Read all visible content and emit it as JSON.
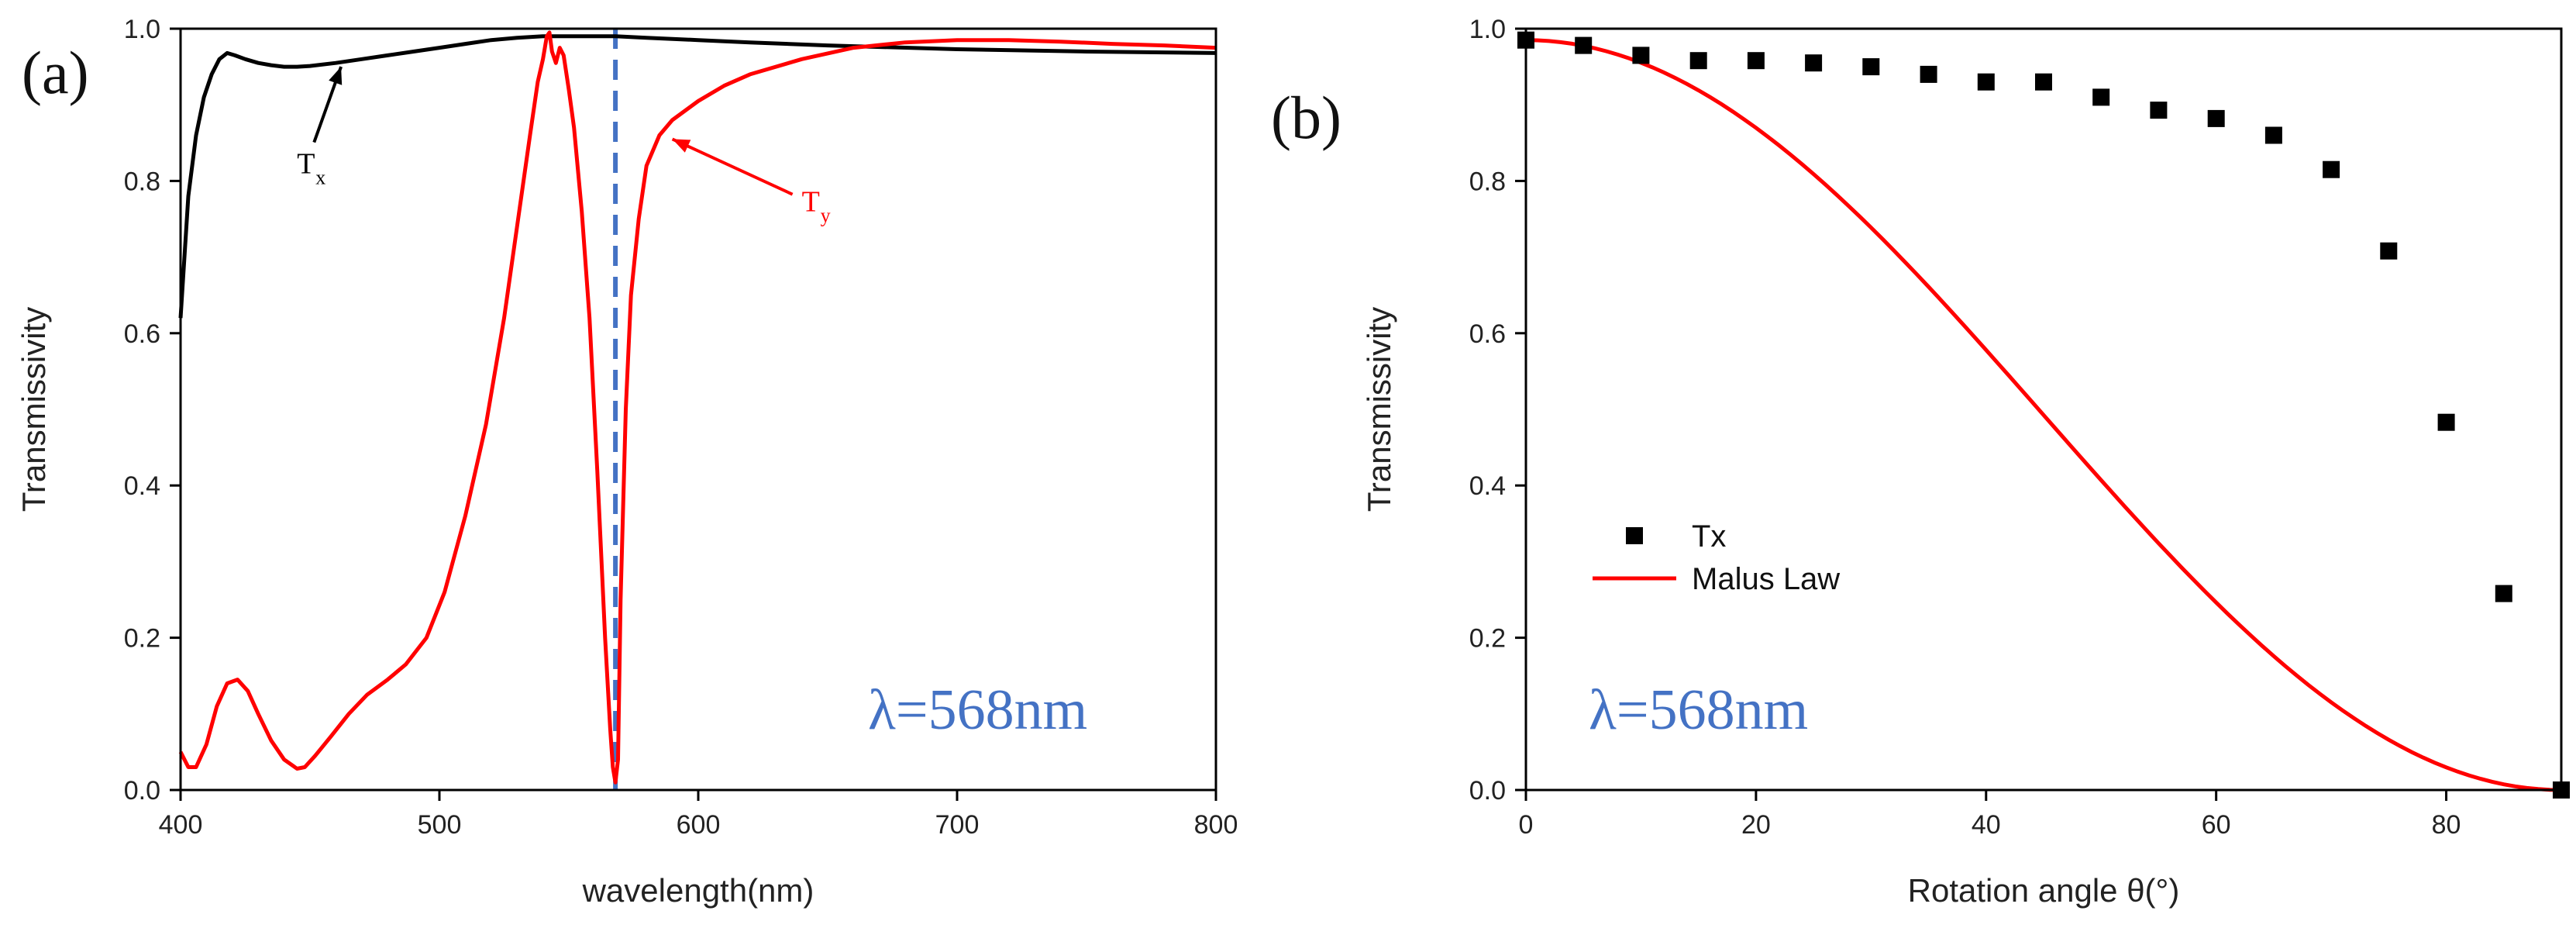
{
  "chart_data": [
    {
      "type": "line",
      "panel_label": "(a)",
      "title": "",
      "xlabel": "wavelength(nm)",
      "ylabel": "Transmissivity",
      "xlim": [
        400,
        800
      ],
      "ylim": [
        0.0,
        1.0
      ],
      "xticks": [
        "400",
        "500",
        "600",
        "700",
        "800"
      ],
      "yticks": [
        "0.0",
        "0.2",
        "0.4",
        "0.6",
        "0.8",
        "1.0"
      ],
      "grid": false,
      "series": [
        {
          "name": "Tx",
          "color": "#000000",
          "x": [
            400,
            403,
            406,
            409,
            412,
            415,
            418,
            421,
            425,
            430,
            435,
            440,
            445,
            450,
            460,
            470,
            480,
            490,
            500,
            510,
            520,
            530,
            540,
            545,
            550,
            560,
            568,
            580,
            600,
            620,
            650,
            700,
            750,
            800
          ],
          "y": [
            0.62,
            0.78,
            0.86,
            0.91,
            0.94,
            0.96,
            0.968,
            0.965,
            0.96,
            0.955,
            0.952,
            0.95,
            0.95,
            0.951,
            0.955,
            0.96,
            0.965,
            0.97,
            0.975,
            0.98,
            0.985,
            0.988,
            0.99,
            0.99,
            0.99,
            0.99,
            0.99,
            0.988,
            0.985,
            0.982,
            0.978,
            0.973,
            0.97,
            0.968
          ]
        },
        {
          "name": "Ty",
          "color": "#ff0000",
          "x": [
            400,
            403,
            406,
            410,
            414,
            418,
            422,
            426,
            430,
            435,
            440,
            445,
            448,
            452,
            458,
            465,
            472,
            480,
            487,
            495,
            502,
            510,
            518,
            525,
            530,
            535,
            538,
            540,
            541.5,
            542.5,
            543.5,
            545,
            546.5,
            548,
            550,
            552,
            555,
            558,
            561,
            564,
            566,
            567,
            568,
            569,
            570,
            572,
            574,
            577,
            580,
            585,
            590,
            600,
            610,
            620,
            640,
            660,
            680,
            700,
            720,
            740,
            760,
            780,
            800
          ],
          "y": [
            0.05,
            0.03,
            0.03,
            0.06,
            0.11,
            0.14,
            0.145,
            0.13,
            0.1,
            0.065,
            0.04,
            0.028,
            0.03,
            0.045,
            0.07,
            0.1,
            0.125,
            0.145,
            0.165,
            0.2,
            0.26,
            0.36,
            0.48,
            0.62,
            0.74,
            0.86,
            0.93,
            0.96,
            0.99,
            0.995,
            0.97,
            0.955,
            0.975,
            0.965,
            0.92,
            0.87,
            0.76,
            0.62,
            0.42,
            0.2,
            0.08,
            0.03,
            0.01,
            0.04,
            0.25,
            0.5,
            0.65,
            0.75,
            0.82,
            0.86,
            0.88,
            0.905,
            0.925,
            0.94,
            0.96,
            0.975,
            0.982,
            0.985,
            0.985,
            0.983,
            0.98,
            0.978,
            0.975
          ]
        }
      ],
      "reference_line": {
        "x": 568,
        "color": "#4472c4",
        "style": "dashed"
      },
      "annotations": [
        {
          "text": "T",
          "sub": "x",
          "color": "#000000",
          "text_xy": [
            445,
            0.81
          ],
          "arrow_to": [
            462,
            0.95
          ]
        },
        {
          "text": "T",
          "sub": "y",
          "color": "#ff0000",
          "text_xy": [
            640,
            0.76
          ],
          "arrow_to": [
            590,
            0.855
          ]
        }
      ],
      "label_text": "λ=568nm"
    },
    {
      "type": "scatter",
      "panel_label": "(b)",
      "title": "",
      "xlabel": "Rotation angle θ(°)",
      "ylabel": "Transmissivity",
      "xlim": [
        0,
        90
      ],
      "ylim": [
        0.0,
        1.0
      ],
      "xticks": [
        "0",
        "20",
        "40",
        "60",
        "80"
      ],
      "yticks": [
        "0.0",
        "0.2",
        "0.4",
        "0.6",
        "0.8",
        "1.0"
      ],
      "grid": false,
      "series": [
        {
          "name": "Tx",
          "type": "scatter",
          "color": "#000000",
          "x": [
            0,
            5,
            10,
            15,
            20,
            25,
            30,
            35,
            40,
            45,
            50,
            55,
            60,
            65,
            70,
            75,
            80,
            85,
            90
          ],
          "y": [
            0.985,
            0.978,
            0.965,
            0.958,
            0.958,
            0.955,
            0.95,
            0.94,
            0.93,
            0.93,
            0.91,
            0.893,
            0.882,
            0.86,
            0.815,
            0.708,
            0.483,
            0.258,
            0.0
          ]
        },
        {
          "name": "Malus Law",
          "type": "line",
          "color": "#ff0000",
          "formula": "0.985*cos^2(theta)",
          "amplitude": 0.985
        }
      ],
      "legend": "middle-left",
      "label_text": "λ=568nm"
    }
  ]
}
